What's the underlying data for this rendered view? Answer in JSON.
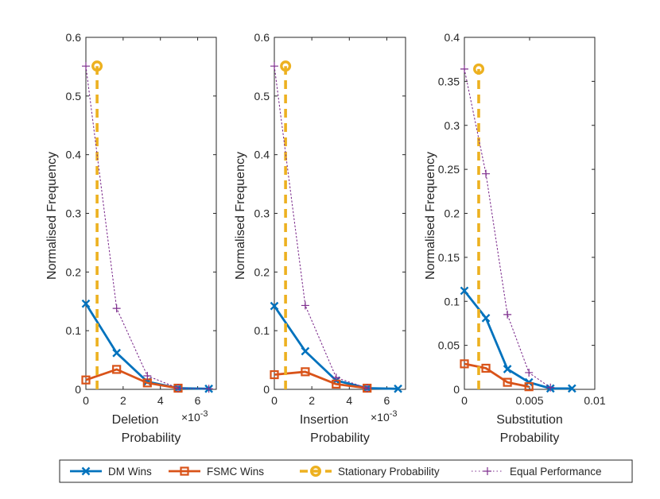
{
  "chart_data": [
    {
      "type": "line",
      "xlabel": "Deletion\nProbability",
      "ylabel": "Normalised Frequency",
      "xlim": [
        0,
        0.007
      ],
      "ylim": [
        0,
        0.6
      ],
      "xticks": [
        0,
        0.002,
        0.004,
        0.006
      ],
      "xtick_labels": [
        "0",
        "2",
        "4",
        "6"
      ],
      "x_exponent": "×10-3",
      "yticks": [
        0,
        0.1,
        0.2,
        0.3,
        0.4,
        0.5,
        0.6
      ],
      "ytick_labels": [
        "0",
        "0.1",
        "0.2",
        "0.3",
        "0.4",
        "0.5",
        "0.6"
      ],
      "series": [
        {
          "name": "DM Wins",
          "x": [
            0,
            0.00165,
            0.0033,
            0.00495,
            0.0066
          ],
          "values": [
            0.146,
            0.062,
            0.013,
            0.002,
            0.001
          ]
        },
        {
          "name": "FSMC Wins",
          "x": [
            0,
            0.00165,
            0.0033,
            0.00495
          ],
          "values": [
            0.016,
            0.034,
            0.011,
            0.002
          ]
        },
        {
          "name": "Stationary Probability",
          "x": [
            0.0006,
            0.0006
          ],
          "values": [
            0,
            0.551
          ]
        },
        {
          "name": "Equal Performance",
          "x": [
            0,
            0.00165,
            0.0033,
            0.00495,
            0.0066
          ],
          "values": [
            0.551,
            0.138,
            0.023,
            0.002,
            0.001
          ]
        }
      ]
    },
    {
      "type": "line",
      "xlabel": "Insertion\nProbability",
      "ylabel": "Normalised Frequency",
      "xlim": [
        0,
        0.007
      ],
      "ylim": [
        0,
        0.6
      ],
      "xticks": [
        0,
        0.002,
        0.004,
        0.006
      ],
      "xtick_labels": [
        "0",
        "2",
        "4",
        "6"
      ],
      "x_exponent": "×10-3",
      "yticks": [
        0,
        0.1,
        0.2,
        0.3,
        0.4,
        0.5,
        0.6
      ],
      "ytick_labels": [
        "0",
        "0.1",
        "0.2",
        "0.3",
        "0.4",
        "0.5",
        "0.6"
      ],
      "series": [
        {
          "name": "DM Wins",
          "x": [
            0,
            0.00165,
            0.0033,
            0.00495,
            0.0066
          ],
          "values": [
            0.142,
            0.065,
            0.015,
            0.002,
            0.001
          ]
        },
        {
          "name": "FSMC Wins",
          "x": [
            0,
            0.00165,
            0.0033,
            0.00495
          ],
          "values": [
            0.025,
            0.03,
            0.009,
            0.002
          ]
        },
        {
          "name": "Stationary Probability",
          "x": [
            0.0006,
            0.0006
          ],
          "values": [
            0,
            0.551
          ]
        },
        {
          "name": "Equal Performance",
          "x": [
            0,
            0.00165,
            0.0033,
            0.00495
          ],
          "values": [
            0.551,
            0.143,
            0.02,
            0.002
          ]
        }
      ]
    },
    {
      "type": "line",
      "xlabel": "Substitution\nProbability",
      "ylabel": "Normalised Frequency",
      "xlim": [
        0,
        0.01
      ],
      "ylim": [
        0,
        0.4
      ],
      "xticks": [
        0,
        0.005,
        0.01
      ],
      "xtick_labels": [
        "0",
        "0.005",
        "0.01"
      ],
      "x_exponent": "",
      "yticks": [
        0,
        0.05,
        0.1,
        0.15,
        0.2,
        0.25,
        0.3,
        0.35,
        0.4
      ],
      "ytick_labels": [
        "0",
        "0.05",
        "0.1",
        "0.15",
        "0.2",
        "0.25",
        "0.3",
        "0.35",
        "0.4"
      ],
      "series": [
        {
          "name": "DM Wins",
          "x": [
            0,
            0.00165,
            0.0033,
            0.00495,
            0.0066,
            0.00825
          ],
          "values": [
            0.112,
            0.081,
            0.023,
            0.008,
            0.001,
            0.001
          ]
        },
        {
          "name": "FSMC Wins",
          "x": [
            0,
            0.00165,
            0.0033,
            0.00495
          ],
          "values": [
            0.029,
            0.024,
            0.008,
            0.003
          ]
        },
        {
          "name": "Stationary Probability",
          "x": [
            0.0011,
            0.0011
          ],
          "values": [
            0,
            0.364
          ]
        },
        {
          "name": "Equal Performance",
          "x": [
            0,
            0.00165,
            0.0033,
            0.00495,
            0.0066
          ],
          "values": [
            0.364,
            0.245,
            0.085,
            0.019,
            0.002
          ]
        }
      ]
    }
  ],
  "legend": {
    "position": "bottom",
    "entries": [
      {
        "label": "DM Wins",
        "marker": "cross"
      },
      {
        "label": "FSMC Wins",
        "marker": "square"
      },
      {
        "label": "Stationary Probability",
        "marker": "circle"
      },
      {
        "label": "Equal Performance",
        "marker": "plus"
      }
    ]
  },
  "colors": {
    "dm": "#0072BD",
    "fsmc": "#D95319",
    "stationary": "#EDB120",
    "equal": "#7E2F8E",
    "axis": "#262626"
  }
}
